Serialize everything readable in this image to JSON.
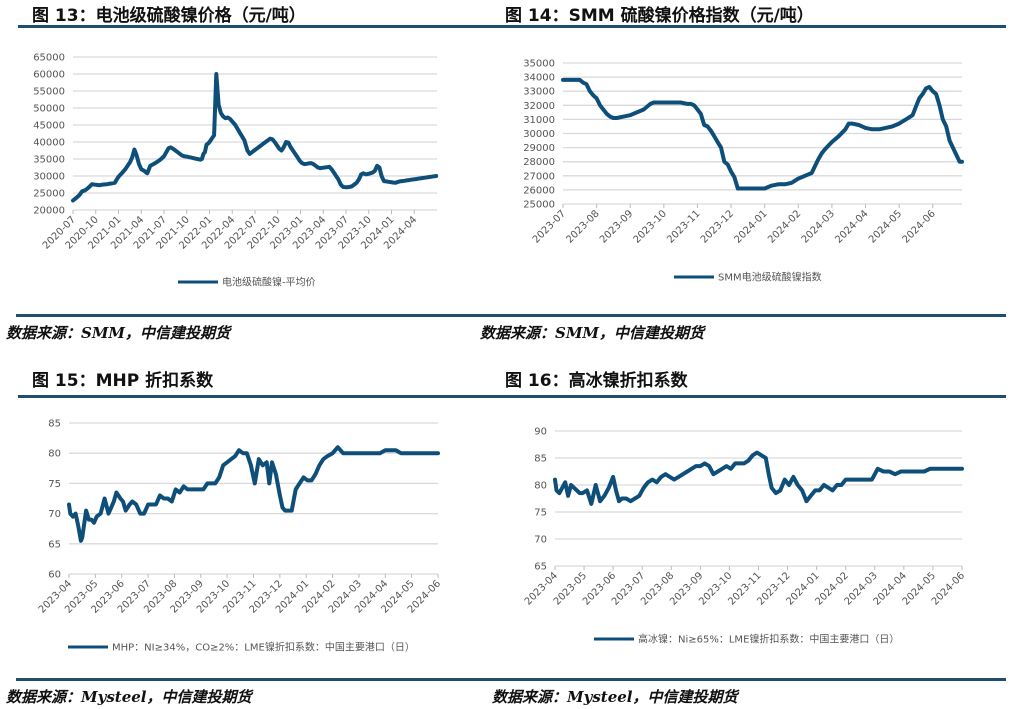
{
  "colors": {
    "line": "#0e4f7a",
    "grid": "#d9d9d9",
    "rule": "#1f4e6e"
  },
  "figures": [
    {
      "title": "图 13：电池级硫酸镍价格（元/吨）",
      "source": "数据来源：SMM，中信建投期货",
      "legend": "电池级硫酸镍-平均价"
    },
    {
      "title": "图 14：SMM 硫酸镍价格指数（元/吨）",
      "source": "数据来源：SMM，中信建投期货",
      "legend": "SMM电池级硫酸镍指数"
    },
    {
      "title": "图 15：MHP 折扣系数",
      "source": "数据来源：Mysteel，中信建投期货",
      "legend": "MHP：NI≥34%，CO≥2%：LME镍折扣系数：中国主要港口（日）"
    },
    {
      "title": "图 16：高冰镍折扣系数",
      "source": "数据来源：Mysteel，中信建投期货",
      "legend": "高冰镍：Ni≥65%：LME镍折扣系数：中国主要港口（日）"
    }
  ],
  "chart_data": [
    {
      "type": "line",
      "title": "图 13：电池级硫酸镍价格（元/吨）",
      "xlabel": "",
      "ylabel": "元/吨",
      "ylim": [
        20000,
        65000
      ],
      "yticks": [
        20000,
        25000,
        30000,
        35000,
        40000,
        45000,
        50000,
        55000,
        60000,
        65000
      ],
      "xticks": [
        "2020-07",
        "2020-10",
        "2021-01",
        "2021-04",
        "2021-07",
        "2021-10",
        "2022-01",
        "2022-04",
        "2022-07",
        "2022-10",
        "2023-01",
        "2023-04",
        "2023-07",
        "2023-10",
        "2024-01",
        "2024-04"
      ],
      "grid": true,
      "legend_position": "bottom",
      "series": [
        {
          "name": "电池级硫酸镍-平均价",
          "x": [
            0,
            0.4,
            0.8,
            1.2,
            1.6,
            2.0,
            2.5,
            3,
            3.5,
            4,
            4.5,
            5,
            5.5,
            6,
            6.3,
            6.6,
            6.9,
            7.2,
            7.5,
            7.8,
            8.1,
            8.4,
            8.7,
            9,
            9.4,
            9.8,
            10.2,
            10.6,
            11,
            11.5,
            12,
            12.3,
            12.6,
            12.9,
            13.2,
            13.5,
            13.8,
            14.1,
            14.4,
            14.7,
            15,
            15.2,
            15.4,
            15.6,
            15.8,
            16.0,
            16.2,
            16.4,
            16.6,
            16.8,
            17.0,
            17.2,
            17.4,
            17.6,
            17.8,
            18.0,
            18.3,
            18.6,
            18.9,
            19.2,
            19.5,
            19.8,
            20.1,
            20.4,
            20.7,
            21.0,
            21.4,
            21.8,
            22.2,
            22.6,
            23.0,
            23.3,
            23.6,
            23.9,
            24.2,
            24.5,
            24.8,
            25.1,
            25.4,
            25.7,
            26.0,
            26.3,
            26.6,
            26.9,
            27.2,
            27.5,
            27.8,
            28.1,
            28.4,
            28.7,
            29.0,
            29.3,
            29.6,
            29.9,
            30.2,
            30.5,
            30.8,
            31.1,
            31.4,
            31.7,
            32.0,
            32.3,
            32.6,
            32.9,
            33.2,
            33.5,
            33.8,
            34.1,
            34.4,
            34.7,
            35.0,
            35.3,
            35.6,
            35.9,
            36.2,
            36.5,
            36.8,
            37.1,
            37.4,
            37.7,
            38.0,
            38.3,
            38.6,
            38.9,
            39.2,
            39.5,
            39.8,
            40.1,
            40.4,
            40.7,
            41.0,
            41.3,
            41.6,
            41.9,
            42.2,
            42.5,
            42.8,
            43.1,
            43.4,
            43.7,
            44.0,
            44.3,
            44.6,
            44.9,
            45.2,
            45.5,
            45.8,
            46.1,
            46.4,
            46.7,
            47.0,
            47.3,
            47.6,
            47.9
          ],
          "values": [
            22800,
            23500,
            24300,
            25500,
            25800,
            26500,
            27600,
            27400,
            27300,
            27500,
            27600,
            27800,
            28000,
            29800,
            30500,
            31200,
            32000,
            33000,
            34000,
            35500,
            37800,
            36000,
            33500,
            32000,
            31500,
            30800,
            33000,
            33500,
            34000,
            34800,
            35800,
            37000,
            38200,
            38400,
            38000,
            37500,
            37000,
            36500,
            36000,
            35800,
            35700,
            35600,
            35500,
            35400,
            35300,
            35200,
            35100,
            35000,
            34900,
            34800,
            35000,
            36500,
            37000,
            39200,
            39500,
            40000,
            41000,
            42000,
            60000,
            51000,
            48500,
            47500,
            47000,
            47200,
            46800,
            46000,
            45000,
            43500,
            42000,
            40500,
            37500,
            36500,
            37000,
            37500,
            38000,
            38500,
            39000,
            39500,
            40000,
            40500,
            41000,
            40800,
            40000,
            39000,
            38000,
            37500,
            38500,
            40000,
            39800,
            38500,
            37500,
            36500,
            35500,
            34500,
            33800,
            33500,
            33600,
            33700,
            33800,
            33500,
            33000,
            32500,
            32300,
            32400,
            32500,
            32600,
            32700,
            32000,
            31000,
            30000,
            29000,
            27500,
            26800,
            26700,
            26700,
            26800,
            27000,
            27500,
            28000,
            29000,
            30500,
            30800,
            30500,
            30600,
            30800,
            31000,
            31500,
            33000,
            32500,
            30000,
            28500,
            28400,
            28300,
            28200,
            28100,
            28000,
            28200,
            28400,
            28500,
            28600,
            28700,
            28800,
            28900,
            29000,
            29100,
            29200,
            29300,
            29400,
            29500,
            29600,
            29700,
            29800,
            29900,
            30000
          ],
          "note": "Approximate trace read from chart; x = months since 2020-07"
        }
      ]
    },
    {
      "type": "line",
      "title": "图 14：SMM 硫酸镍价格指数（元/吨）",
      "xlabel": "",
      "ylabel": "元/吨",
      "ylim": [
        25000,
        35000
      ],
      "yticks": [
        25000,
        26000,
        27000,
        28000,
        29000,
        30000,
        31000,
        32000,
        33000,
        34000,
        35000
      ],
      "xticks": [
        "2023-07",
        "2023-08",
        "2023-09",
        "2023-10",
        "2023-11",
        "2023-12",
        "2024-01",
        "2024-02",
        "2024-03",
        "2024-04",
        "2024-05",
        "2024-06"
      ],
      "grid": true,
      "legend_position": "bottom",
      "series": [
        {
          "name": "SMM电池级硫酸镍指数",
          "x": [
            0,
            0.25,
            0.5,
            0.6,
            0.7,
            0.8,
            0.9,
            1.0,
            1.1,
            1.2,
            1.3,
            1.4,
            1.5,
            1.6,
            1.8,
            2.0,
            2.2,
            2.4,
            2.6,
            2.7,
            2.8,
            3.0,
            3.2,
            3.4,
            3.5,
            3.7,
            3.8,
            3.9,
            4.0,
            4.1,
            4.2,
            4.3,
            4.4,
            4.5,
            4.6,
            4.7,
            4.8,
            4.9,
            5.0,
            5.1,
            5.2,
            5.3,
            5.4,
            5.6,
            5.8,
            6.0,
            6.2,
            6.4,
            6.6,
            6.8,
            7.0,
            7.2,
            7.4,
            7.5,
            7.6,
            7.7,
            7.8,
            8.0,
            8.2,
            8.4,
            8.5,
            8.6,
            8.8,
            9.0,
            9.2,
            9.4,
            9.6,
            9.8,
            10.0,
            10.2,
            10.4,
            10.5,
            10.6,
            10.7,
            10.8,
            10.9,
            11.0,
            11.1,
            11.2,
            11.3,
            11.4,
            11.5,
            11.6,
            11.7,
            11.8,
            11.87
          ],
          "values": [
            33800,
            33800,
            33800,
            33600,
            33500,
            33000,
            32700,
            32500,
            32000,
            31700,
            31400,
            31200,
            31100,
            31100,
            31200,
            31300,
            31500,
            31700,
            32100,
            32200,
            32200,
            32200,
            32200,
            32200,
            32200,
            32100,
            32100,
            32000,
            31700,
            31400,
            30600,
            30500,
            30200,
            29800,
            29400,
            29000,
            28000,
            27800,
            27300,
            26900,
            26100,
            26100,
            26100,
            26100,
            26100,
            26100,
            26300,
            26400,
            26400,
            26500,
            26800,
            27000,
            27200,
            27700,
            28200,
            28600,
            28900,
            29400,
            29800,
            30300,
            30700,
            30700,
            30600,
            30400,
            30300,
            30300,
            30400,
            30500,
            30700,
            31000,
            31300,
            31900,
            32500,
            32800,
            33200,
            33300,
            33000,
            32800,
            32000,
            31000,
            30500,
            29500,
            29000,
            28500,
            28000,
            28000
          ],
          "note": "Approximate trace; x = months since 2023-07"
        }
      ]
    },
    {
      "type": "line",
      "title": "图 15：MHP 折扣系数",
      "xlabel": "",
      "ylabel": "",
      "ylim": [
        60,
        85
      ],
      "yticks": [
        60,
        65,
        70,
        75,
        80,
        85
      ],
      "xticks": [
        "2023-04",
        "2023-05",
        "2023-06",
        "2023-07",
        "2023-08",
        "2023-09",
        "2023-10",
        "2023-11",
        "2023-12",
        "2024-01",
        "2024-02",
        "2024-03",
        "2024-04",
        "2024-05",
        "2024-06"
      ],
      "grid": true,
      "legend_position": "bottom",
      "series": [
        {
          "name": "MHP：NI≥34%，CO≥2%：LME镍折扣系数：中国主要港口（日）",
          "x": [
            0,
            0.05,
            0.15,
            0.25,
            0.35,
            0.45,
            0.5,
            0.55,
            0.65,
            0.75,
            0.85,
            0.95,
            1.05,
            1.2,
            1.35,
            1.5,
            1.6,
            1.7,
            1.8,
            1.95,
            2.05,
            2.15,
            2.3,
            2.4,
            2.55,
            2.7,
            2.85,
            3.0,
            3.15,
            3.3,
            3.45,
            3.6,
            3.75,
            3.9,
            4.05,
            4.2,
            4.35,
            4.5,
            4.65,
            4.8,
            4.95,
            5.1,
            5.25,
            5.4,
            5.55,
            5.7,
            5.85,
            6.0,
            6.15,
            6.3,
            6.45,
            6.6,
            6.75,
            6.9,
            7.05,
            7.2,
            7.35,
            7.5,
            7.6,
            7.7,
            7.85,
            8.0,
            8.1,
            8.2,
            8.3,
            8.45,
            8.6,
            8.75,
            8.9,
            9.05,
            9.2,
            9.35,
            9.5,
            9.65,
            9.8,
            10.0,
            10.2,
            10.4,
            10.6,
            10.8,
            11.0,
            11.2,
            11.4,
            11.6,
            11.8,
            12.0,
            12.2,
            12.4,
            12.6,
            12.8,
            13.0,
            13.2,
            13.4,
            13.6,
            13.8,
            14.0
          ],
          "values": [
            71.5,
            70,
            69.5,
            70,
            68,
            65.5,
            66,
            67.5,
            70.5,
            69,
            69,
            68.5,
            69.5,
            70,
            72.5,
            70,
            71,
            72,
            73.5,
            72.5,
            72,
            70.5,
            71.5,
            72,
            71.5,
            70,
            70,
            71.5,
            71.5,
            71.5,
            73,
            72.5,
            72.5,
            72,
            74,
            73.5,
            74.5,
            74,
            74,
            74,
            74,
            74,
            75,
            75,
            75,
            76,
            78,
            78.5,
            79,
            79.5,
            80.5,
            80,
            80,
            78,
            75,
            79,
            78,
            78.5,
            75,
            78.5,
            76.5,
            73,
            71,
            70.5,
            70.5,
            70.5,
            74,
            75,
            76,
            75.5,
            75.5,
            76.5,
            78,
            79,
            79.5,
            80,
            81,
            80,
            80,
            80,
            80,
            80,
            80,
            80,
            80,
            80.5,
            80.5,
            80.5,
            80,
            80,
            80,
            80,
            80,
            80,
            80,
            80
          ],
          "note": "Approximate trace; x = months since 2023-04"
        }
      ]
    },
    {
      "type": "line",
      "title": "图 16：高冰镍折扣系数",
      "xlabel": "",
      "ylabel": "",
      "ylim": [
        65,
        90
      ],
      "yticks": [
        65,
        70,
        75,
        80,
        85,
        90
      ],
      "xticks": [
        "2023-04",
        "2023-05",
        "2023-06",
        "2023-07",
        "2023-08",
        "2023-09",
        "2023-10",
        "2023-11",
        "2023-12",
        "2024-01",
        "2024-02",
        "2024-03",
        "2024-04",
        "2024-05",
        "2024-06"
      ],
      "grid": true,
      "legend_position": "bottom",
      "series": [
        {
          "name": "高冰镍：Ni≥65%：LME镍折扣系数：中国主要港口（日）",
          "x": [
            0,
            0.05,
            0.15,
            0.25,
            0.35,
            0.45,
            0.55,
            0.65,
            0.75,
            0.85,
            0.95,
            1.1,
            1.25,
            1.4,
            1.55,
            1.7,
            1.85,
            2.0,
            2.1,
            2.2,
            2.3,
            2.45,
            2.6,
            2.75,
            2.9,
            3.05,
            3.2,
            3.35,
            3.5,
            3.65,
            3.8,
            3.95,
            4.1,
            4.25,
            4.4,
            4.55,
            4.7,
            4.85,
            5.0,
            5.15,
            5.3,
            5.45,
            5.6,
            5.75,
            5.9,
            6.05,
            6.2,
            6.35,
            6.5,
            6.65,
            6.8,
            6.95,
            7.1,
            7.25,
            7.35,
            7.45,
            7.6,
            7.75,
            7.9,
            8.05,
            8.2,
            8.35,
            8.5,
            8.65,
            8.8,
            8.95,
            9.1,
            9.25,
            9.4,
            9.55,
            9.7,
            9.85,
            10.0,
            10.15,
            10.3,
            10.5,
            10.7,
            10.9,
            11.1,
            11.3,
            11.5,
            11.7,
            11.9,
            12.1,
            12.3,
            12.5,
            12.7,
            12.9,
            13.1,
            13.3,
            13.5,
            13.7,
            13.9,
            14.0
          ],
          "values": [
            81,
            79,
            78.5,
            79.5,
            80.5,
            78,
            80,
            79.5,
            79,
            78.5,
            78.5,
            79,
            76.5,
            80,
            77,
            78,
            79.5,
            81.5,
            79,
            77,
            77.5,
            77.5,
            77,
            77.5,
            78,
            79.5,
            80.5,
            81,
            80.5,
            81.5,
            82,
            81.5,
            81,
            81.5,
            82,
            82.5,
            83,
            83.5,
            83.5,
            84,
            83.5,
            82,
            82.5,
            83,
            83.5,
            83,
            84,
            84,
            84,
            84.5,
            85.5,
            86,
            85.5,
            85,
            82,
            79.5,
            78.5,
            79,
            81,
            80,
            81.5,
            80,
            79,
            77,
            78,
            79,
            79,
            80,
            79.5,
            79,
            80,
            80,
            81,
            81,
            81,
            81,
            81,
            81,
            83,
            82.5,
            82.5,
            82,
            82.5,
            82.5,
            82.5,
            82.5,
            82.5,
            83,
            83,
            83,
            83,
            83,
            83,
            83
          ],
          "note": "Approximate trace; x = months since 2023-04"
        }
      ]
    }
  ]
}
